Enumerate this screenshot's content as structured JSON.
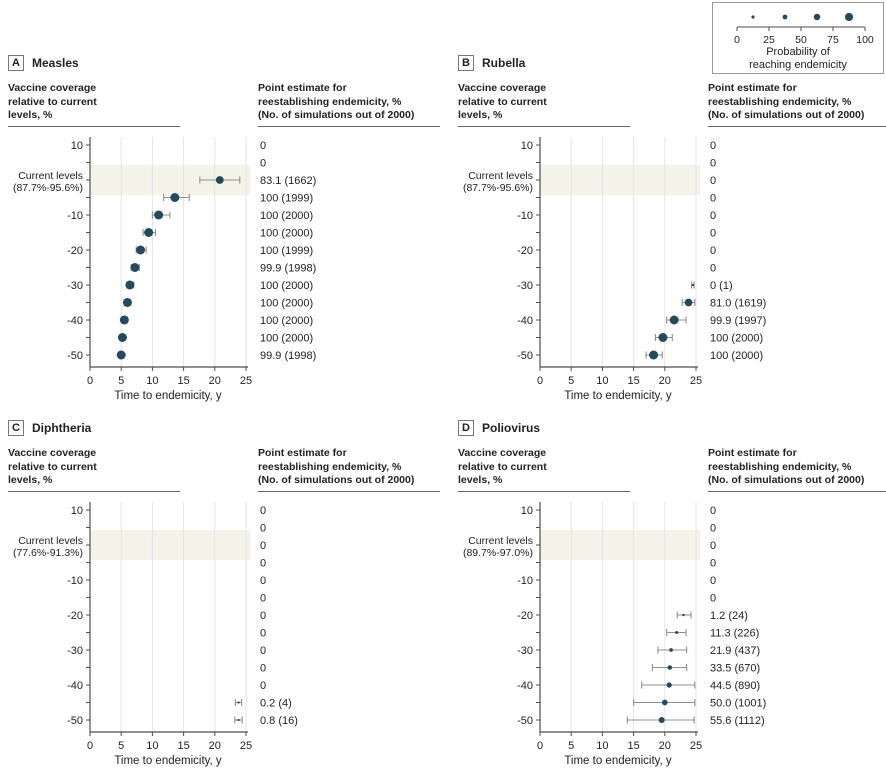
{
  "legend": {
    "caption_line1": "Probability of",
    "caption_line2": "reaching endemicity",
    "ticks": [
      0,
      25,
      50,
      75,
      100
    ],
    "dot_probs": [
      12.5,
      37.5,
      62.5,
      87.5
    ]
  },
  "headers": {
    "left_l1": "Vaccine coverage",
    "left_l2": "relative to current",
    "left_l3": "levels, %",
    "right_l1": "Point estimate for",
    "right_l2": "reestablishing endemicity, %",
    "right_l3": "(No. of simulations out of 2000)"
  },
  "axis": {
    "x_ticks": [
      0,
      5,
      10,
      15,
      20,
      25
    ],
    "x_label": "Time to endemicity, y",
    "x_max": 25
  },
  "colors": {
    "dot": "#26495C",
    "error_bar": "#8F8F8F",
    "band": "#F4F3EA",
    "grid": "#E3E3E3",
    "axis": "#4D4D4D",
    "text": "#222222"
  },
  "chart_data": [
    {
      "type": "scatter",
      "panel": "A",
      "title": "Measles",
      "xlabel": "Time to endemicity, y",
      "xlim": [
        0,
        25
      ],
      "ylabel": "Vaccine coverage relative to current levels, %",
      "current_levels_range": "(87.7%-95.6%)",
      "rows": [
        {
          "coverage": "10",
          "tick": "10",
          "estimate": "0"
        },
        {
          "coverage": "5",
          "tick": "",
          "estimate": "0"
        },
        {
          "coverage": "0",
          "tick": "Current levels",
          "tick2": "(87.7%-95.6%)",
          "band": true,
          "estimate": "83.1 (1662)",
          "x": 20.8,
          "lo": 17.6,
          "hi": 24.0,
          "prob": 83.1
        },
        {
          "coverage": "-5",
          "tick": "",
          "estimate": "100 (1999)",
          "x": 13.6,
          "lo": 11.8,
          "hi": 15.9,
          "prob": 100
        },
        {
          "coverage": "-10",
          "tick": "-10",
          "estimate": "100 (2000)",
          "x": 11.0,
          "lo": 10.0,
          "hi": 12.8,
          "prob": 100
        },
        {
          "coverage": "-15",
          "tick": "",
          "estimate": "100 (2000)",
          "x": 9.4,
          "lo": 8.5,
          "hi": 10.5,
          "prob": 100
        },
        {
          "coverage": "-20",
          "tick": "-20",
          "estimate": "100 (1999)",
          "x": 8.1,
          "lo": 7.4,
          "hi": 9.0,
          "prob": 100
        },
        {
          "coverage": "-25",
          "tick": "",
          "estimate": "99.9 (1998)",
          "x": 7.2,
          "lo": 6.6,
          "hi": 7.9,
          "prob": 99.9
        },
        {
          "coverage": "-30",
          "tick": "-30",
          "estimate": "100 (2000)",
          "x": 6.4,
          "lo": 5.9,
          "hi": 7.0,
          "prob": 100
        },
        {
          "coverage": "-35",
          "tick": "",
          "estimate": "100 (2000)",
          "x": 6.0,
          "lo": 5.5,
          "hi": 6.5,
          "prob": 100
        },
        {
          "coverage": "-40",
          "tick": "-40",
          "estimate": "100 (2000)",
          "x": 5.5,
          "lo": 5.1,
          "hi": 6.0,
          "prob": 100
        },
        {
          "coverage": "-45",
          "tick": "",
          "estimate": "100 (2000)",
          "x": 5.2,
          "lo": 4.8,
          "hi": 5.6,
          "prob": 100
        },
        {
          "coverage": "-50",
          "tick": "-50",
          "estimate": "99.9 (1998)",
          "x": 5.0,
          "lo": 4.6,
          "hi": 5.4,
          "prob": 99.9
        }
      ]
    },
    {
      "type": "scatter",
      "panel": "B",
      "title": "Rubella",
      "xlabel": "Time to endemicity, y",
      "xlim": [
        0,
        25
      ],
      "ylabel": "Vaccine coverage relative to current levels, %",
      "current_levels_range": "(87.7%-95.6%)",
      "rows": [
        {
          "coverage": "10",
          "tick": "10",
          "estimate": "0"
        },
        {
          "coverage": "5",
          "tick": "",
          "estimate": "0"
        },
        {
          "coverage": "0",
          "tick": "Current levels",
          "tick2": "(87.7%-95.6%)",
          "band": true,
          "estimate": "0"
        },
        {
          "coverage": "-5",
          "tick": "",
          "estimate": "0"
        },
        {
          "coverage": "-10",
          "tick": "-10",
          "estimate": "0"
        },
        {
          "coverage": "-15",
          "tick": "",
          "estimate": "0"
        },
        {
          "coverage": "-20",
          "tick": "-20",
          "estimate": "0"
        },
        {
          "coverage": "-25",
          "tick": "",
          "estimate": "0"
        },
        {
          "coverage": "-30",
          "tick": "-30",
          "estimate": "0 (1)",
          "x": 24.5,
          "lo": 24.3,
          "hi": 24.7,
          "prob": 0
        },
        {
          "coverage": "-35",
          "tick": "",
          "estimate": "81.0 (1619)",
          "x": 23.8,
          "lo": 22.8,
          "hi": 24.8,
          "prob": 81.0
        },
        {
          "coverage": "-40",
          "tick": "-40",
          "estimate": "99.9 (1997)",
          "x": 21.5,
          "lo": 20.3,
          "hi": 23.4,
          "prob": 99.9
        },
        {
          "coverage": "-45",
          "tick": "",
          "estimate": "100 (2000)",
          "x": 19.7,
          "lo": 18.5,
          "hi": 21.2,
          "prob": 100
        },
        {
          "coverage": "-50",
          "tick": "-50",
          "estimate": "100 (2000)",
          "x": 18.2,
          "lo": 17.0,
          "hi": 19.6,
          "prob": 100
        }
      ]
    },
    {
      "type": "scatter",
      "panel": "C",
      "title": "Diphtheria",
      "xlabel": "Time to endemicity, y",
      "xlim": [
        0,
        25
      ],
      "ylabel": "Vaccine coverage relative to current levels, %",
      "current_levels_range": "(77.6%-91.3%)",
      "rows": [
        {
          "coverage": "10",
          "tick": "10",
          "estimate": "0"
        },
        {
          "coverage": "5",
          "tick": "",
          "estimate": "0"
        },
        {
          "coverage": "0",
          "tick": "Current levels",
          "tick2": "(77.6%-91.3%)",
          "band": true,
          "estimate": "0"
        },
        {
          "coverage": "-5",
          "tick": "",
          "estimate": "0"
        },
        {
          "coverage": "-10",
          "tick": "-10",
          "estimate": "0"
        },
        {
          "coverage": "-15",
          "tick": "",
          "estimate": "0"
        },
        {
          "coverage": "-20",
          "tick": "-20",
          "estimate": "0"
        },
        {
          "coverage": "-25",
          "tick": "",
          "estimate": "0"
        },
        {
          "coverage": "-30",
          "tick": "-30",
          "estimate": "0"
        },
        {
          "coverage": "-35",
          "tick": "",
          "estimate": "0"
        },
        {
          "coverage": "-40",
          "tick": "-40",
          "estimate": "0"
        },
        {
          "coverage": "-45",
          "tick": "",
          "estimate": "0.2 (4)",
          "x": 23.8,
          "lo": 23.3,
          "hi": 24.3,
          "prob": 0.2
        },
        {
          "coverage": "-50",
          "tick": "-50",
          "estimate": "0.8 (16)",
          "x": 23.8,
          "lo": 23.2,
          "hi": 24.4,
          "prob": 0.8
        }
      ]
    },
    {
      "type": "scatter",
      "panel": "D",
      "title": "Poliovirus",
      "xlabel": "Time to endemicity, y",
      "xlim": [
        0,
        25
      ],
      "ylabel": "Vaccine coverage relative to current levels, %",
      "current_levels_range": "(89.7%-97.0%)",
      "rows": [
        {
          "coverage": "10",
          "tick": "10",
          "estimate": "0"
        },
        {
          "coverage": "5",
          "tick": "",
          "estimate": "0"
        },
        {
          "coverage": "0",
          "tick": "Current levels",
          "tick2": "(89.7%-97.0%)",
          "band": true,
          "estimate": "0"
        },
        {
          "coverage": "-5",
          "tick": "",
          "estimate": "0"
        },
        {
          "coverage": "-10",
          "tick": "-10",
          "estimate": "0"
        },
        {
          "coverage": "-15",
          "tick": "",
          "estimate": "0"
        },
        {
          "coverage": "-20",
          "tick": "-20",
          "estimate": "1.2 (24)",
          "x": 23.0,
          "lo": 22.0,
          "hi": 24.2,
          "prob": 1.2
        },
        {
          "coverage": "-25",
          "tick": "",
          "estimate": "11.3 (226)",
          "x": 21.9,
          "lo": 20.3,
          "hi": 23.4,
          "prob": 11.3
        },
        {
          "coverage": "-30",
          "tick": "-30",
          "estimate": "21.9 (437)",
          "x": 21.0,
          "lo": 18.9,
          "hi": 23.5,
          "prob": 21.9
        },
        {
          "coverage": "-35",
          "tick": "",
          "estimate": "33.5 (670)",
          "x": 20.8,
          "lo": 18.0,
          "hi": 23.5,
          "prob": 33.5
        },
        {
          "coverage": "-40",
          "tick": "-40",
          "estimate": "44.5 (890)",
          "x": 20.7,
          "lo": 16.3,
          "hi": 24.8,
          "prob": 44.5
        },
        {
          "coverage": "-45",
          "tick": "",
          "estimate": "50.0 (1001)",
          "x": 20.0,
          "lo": 15.0,
          "hi": 24.8,
          "prob": 50.0
        },
        {
          "coverage": "-50",
          "tick": "-50",
          "estimate": "55.6 (1112)",
          "x": 19.5,
          "lo": 14.0,
          "hi": 24.7,
          "prob": 55.6
        }
      ]
    }
  ]
}
